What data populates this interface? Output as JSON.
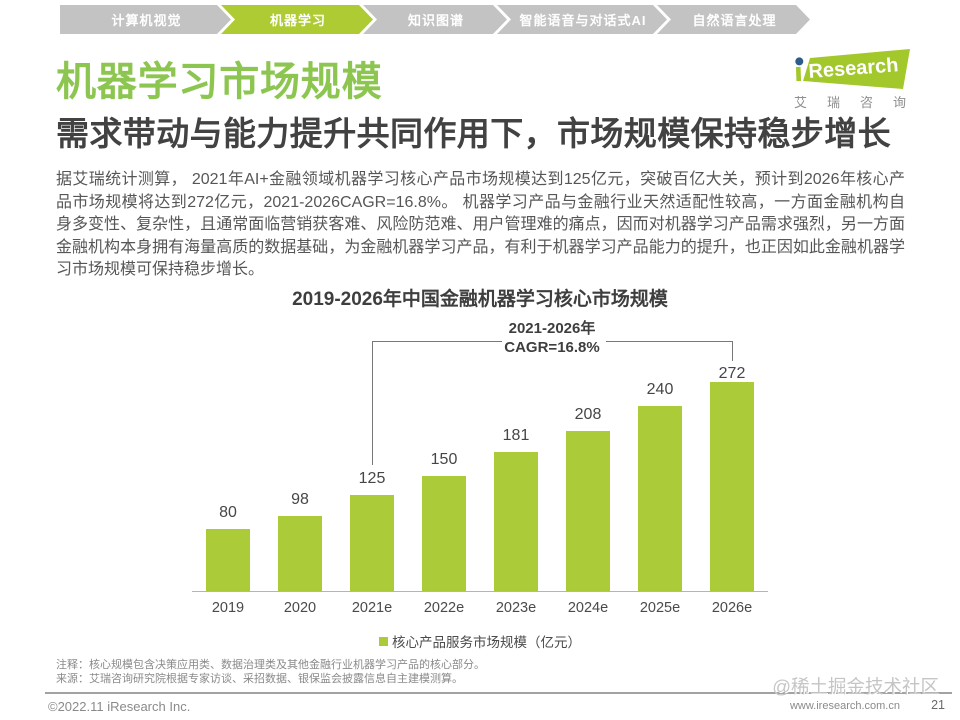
{
  "nav": {
    "tabs": [
      {
        "label": "计算机视觉",
        "active": false
      },
      {
        "label": "机器学习",
        "active": true
      },
      {
        "label": "知识图谱",
        "active": false
      },
      {
        "label": "智能语音与对话式AI",
        "active": false
      },
      {
        "label": "自然语言处理",
        "active": false
      }
    ]
  },
  "header": {
    "page_title": "机器学习市场规模",
    "subtitle": "需求带动与能力提升共同作用下，市场规模保持稳步增长",
    "logo": {
      "brand_i": "i",
      "brand_text": "Research",
      "brand_cn": [
        "艾",
        "瑞",
        "咨",
        "询"
      ]
    }
  },
  "body_text": {
    "paragraph_lines": [
      "据艾瑞统计测算， 2021年AI+金融领域机器学习核心产品市场规模达到125亿元，突破百亿大关，预计到2026年核心产",
      "品市场规模将达到272亿元，2021-2026CAGR=16.8%。 机器学习产品与金融行业天然适配性较高，一方面金融机构自",
      "身多变性、复杂性，且通常面临营销获客难、风险防范难、用户管理难的痛点，因而对机器学习产品需求强烈，另一方面",
      "金融机构本身拥有海量高质的数据基础，为金融机器学习产品，有利于机器学习产品能力的提升，也正因如此金融机器学",
      "习市场规模可保持稳步增长。"
    ]
  },
  "chart_data": {
    "type": "bar",
    "title": "2019-2026年中国金融机器学习核心市场规模",
    "categories": [
      "2019",
      "2020",
      "2021e",
      "2022e",
      "2023e",
      "2024e",
      "2025e",
      "2026e"
    ],
    "values": [
      80,
      98,
      125,
      150,
      181,
      208,
      240,
      272
    ],
    "unit": "亿元",
    "bar_color": "#accb38",
    "legend": "核心产品服务市场规模（亿元）",
    "annotation": {
      "line1": "2021-2026年",
      "line2": "CAGR=16.8%",
      "from_category": "2021e",
      "to_category": "2026e"
    }
  },
  "footnotes": {
    "note": "注释：核心规模包含决策应用类、数据治理类及其他金融行业机器学习产品的核心部分。",
    "source": "来源：艾瑞咨询研究院根据专家访谈、采招数据、银保监会披露信息自主建模测算。"
  },
  "footer": {
    "copyright": "©2022.11 iResearch Inc.",
    "website": "www.iresearch.com.cn",
    "page_number": "21",
    "watermark": "@稀土掘金技术社区"
  },
  "colors": {
    "brand_green": "#accb38",
    "title_green": "#8cc650",
    "active_tab_green": "#aecb33",
    "tab_gray": "#c3c3c4",
    "logo_green": "#a3c82c",
    "logo_dot_blue": "#2b5c8a"
  }
}
